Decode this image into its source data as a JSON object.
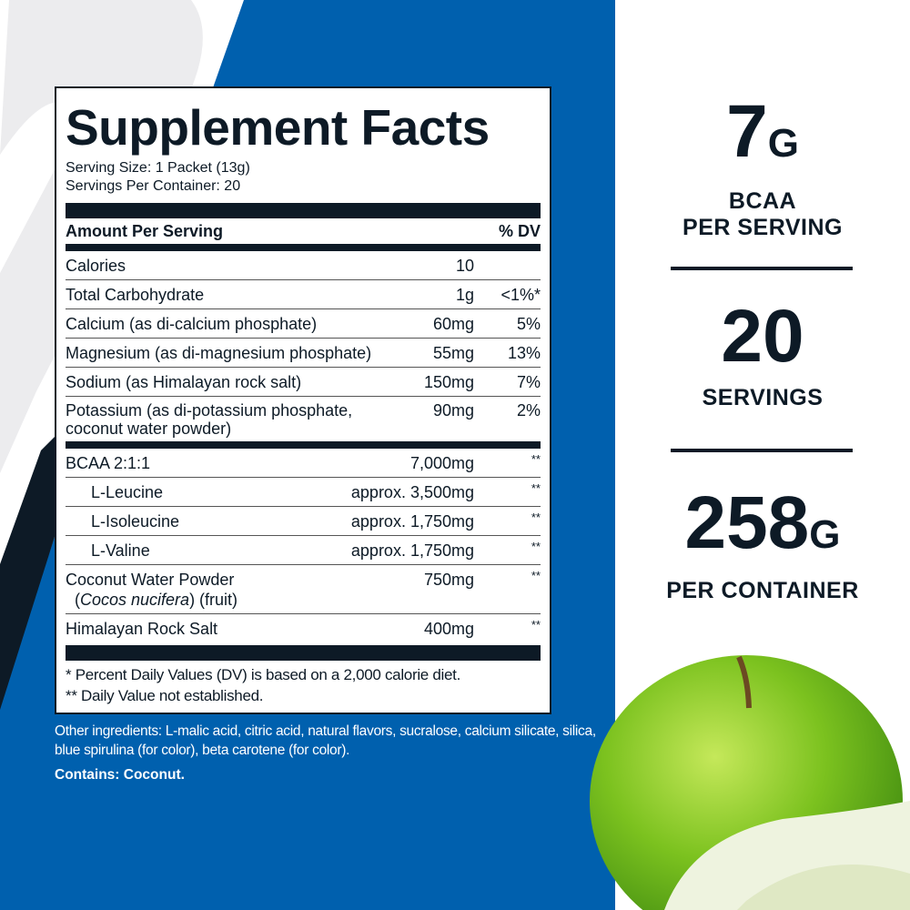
{
  "colors": {
    "blue": "#0060ae",
    "navy": "#0d1a26",
    "apple": "#7cc21f"
  },
  "label": {
    "title": "Supplement Facts",
    "serving_size": "Serving Size: 1 Packet (13g)",
    "servings_per_container": "Servings Per Container: 20",
    "header": {
      "amount": "Amount Per Serving",
      "dv": "% DV"
    },
    "nutrients": [
      {
        "name": "Calories",
        "amount": "10",
        "dv": ""
      },
      {
        "name": "Total Carbohydrate",
        "amount": "1g",
        "dv": "<1%*"
      },
      {
        "name": "Calcium (as di-calcium phosphate)",
        "amount": "60mg",
        "dv": "5%"
      },
      {
        "name": "Magnesium (as di-magnesium phosphate)",
        "amount": "55mg",
        "dv": "13%"
      },
      {
        "name": "Sodium (as Himalayan rock salt)",
        "amount": "150mg",
        "dv": "7%"
      },
      {
        "name": "Potassium (as di-potassium phosphate,",
        "name2": "coconut water powder)",
        "amount": "90mg",
        "dv": "2%"
      }
    ],
    "ingredients": [
      {
        "name": "BCAA 2:1:1",
        "amount": "7,000mg",
        "dv": "**"
      },
      {
        "name": "L-Leucine",
        "amount": "approx. 3,500mg",
        "dv": "**"
      },
      {
        "name": "L-Isoleucine",
        "amount": "approx. 1,750mg",
        "dv": "**"
      },
      {
        "name": "L-Valine",
        "amount": "approx. 1,750mg",
        "dv": "**"
      },
      {
        "name": "Coconut Water Powder",
        "name2_italic": "Cocos nucifera",
        "name2_rest": ") (fruit)",
        "amount": "750mg",
        "dv": "**"
      },
      {
        "name": "Himalayan Rock Salt",
        "amount": "400mg",
        "dv": "**"
      }
    ],
    "footnote1": "* Percent Daily Values (DV) is based on a 2,000 calorie diet.",
    "footnote2": "** Daily Value not established."
  },
  "other_ingredients": "Other ingredients:  L-malic acid,  citric acid, natural flavors,  sucralose, calcium silicate, silica, blue spirulina (for color), beta carotene (for color).",
  "contains": "Contains: Coconut.",
  "stats": [
    {
      "value": "7",
      "unit": "G",
      "label1": "BCAA",
      "label2": "PER SERVING"
    },
    {
      "value": "20",
      "unit": "",
      "label1": "SERVINGS",
      "label2": ""
    },
    {
      "value": "258",
      "unit": "G",
      "label1": "PER CONTAINER",
      "label2": ""
    }
  ]
}
